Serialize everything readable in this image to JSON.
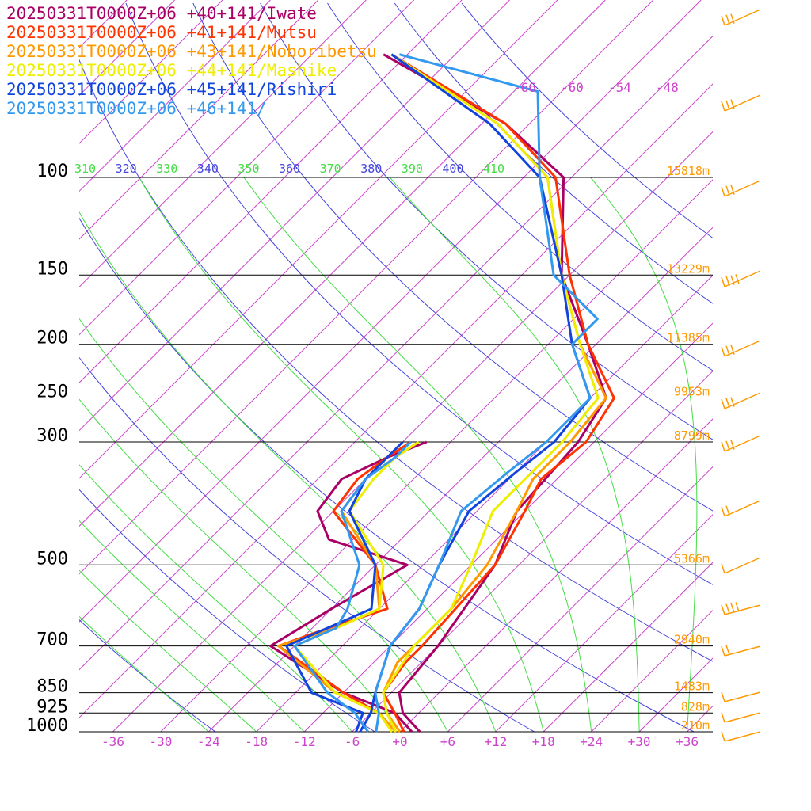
{
  "chart_data": {
    "type": "line",
    "pressure_levels": [
      100,
      150,
      200,
      250,
      300,
      500,
      700,
      850,
      925,
      1000
    ],
    "temperature_ticks": [
      "-36",
      "-30",
      "-24",
      "-18",
      "-12",
      "-6",
      "+0",
      "+6",
      "+12",
      "+18",
      "+24",
      "+30",
      "+36"
    ],
    "theta_labels": [
      "310",
      "320",
      "330",
      "340",
      "350",
      "360",
      "370",
      "380",
      "390",
      "400",
      "410"
    ],
    "upper_isotherm_labels": [
      "-66",
      "-60",
      "-54",
      "-48"
    ],
    "height_labels": [
      {
        "p": 100,
        "text": "15818m"
      },
      {
        "p": 150,
        "text": "13229m"
      },
      {
        "p": 200,
        "text": "11385m"
      },
      {
        "p": 250,
        "text": "9953m"
      },
      {
        "p": 300,
        "text": "8799m"
      },
      {
        "p": 500,
        "text": "5366m"
      },
      {
        "p": 700,
        "text": "2940m"
      },
      {
        "p": 850,
        "text": "1483m"
      },
      {
        "p": 925,
        "text": "828m"
      },
      {
        "p": 1000,
        "text": "210m"
      }
    ],
    "series": [
      {
        "name": "20250331T0000Z+06 +40+141/Iwate",
        "color": "#aa0066",
        "temperature": [
          [
            1000,
            2.5
          ],
          [
            925,
            -2
          ],
          [
            850,
            -5
          ],
          [
            700,
            -6
          ],
          [
            500,
            -9
          ],
          [
            400,
            -13
          ],
          [
            300,
            -14
          ],
          [
            250,
            -16
          ],
          [
            200,
            -25
          ],
          [
            150,
            -37
          ],
          [
            100,
            -49
          ],
          [
            80,
            -63
          ],
          [
            60,
            -87
          ]
        ],
        "dewpoint": [
          [
            1000,
            1.5
          ],
          [
            925,
            -3
          ],
          [
            850,
            -12
          ],
          [
            700,
            -27
          ],
          [
            600,
            -24
          ],
          [
            500,
            -20
          ],
          [
            450,
            -33
          ],
          [
            400,
            -38
          ],
          [
            350,
            -39
          ],
          [
            320,
            -36
          ],
          [
            300,
            -33
          ]
        ]
      },
      {
        "name": "20250331T0000Z+06 +41+141/Mutsu",
        "color": "#ff3300",
        "temperature": [
          [
            1000,
            0.5
          ],
          [
            925,
            -3
          ],
          [
            850,
            -7
          ],
          [
            750,
            -8
          ],
          [
            700,
            -8
          ],
          [
            500,
            -9
          ],
          [
            400,
            -12
          ],
          [
            350,
            -14
          ],
          [
            300,
            -13
          ],
          [
            250,
            -15
          ],
          [
            200,
            -25
          ],
          [
            150,
            -36
          ],
          [
            100,
            -50
          ],
          [
            80,
            -63
          ],
          [
            60,
            -86
          ]
        ],
        "dewpoint": [
          [
            1000,
            -0.5
          ],
          [
            925,
            -5
          ],
          [
            850,
            -12
          ],
          [
            700,
            -26
          ],
          [
            650,
            -22
          ],
          [
            600,
            -17
          ],
          [
            500,
            -24
          ],
          [
            400,
            -36
          ],
          [
            350,
            -37
          ],
          [
            320,
            -36
          ],
          [
            300,
            -35
          ]
        ]
      },
      {
        "name": "20250331T0000Z+06 +43+141/Noboribetsu",
        "color": "#ff9900",
        "temperature": [
          [
            1000,
            0
          ],
          [
            925,
            -4
          ],
          [
            850,
            -7
          ],
          [
            750,
            -9
          ],
          [
            700,
            -9
          ],
          [
            600,
            -9
          ],
          [
            500,
            -10
          ],
          [
            400,
            -13
          ],
          [
            350,
            -15
          ],
          [
            300,
            -15
          ],
          [
            250,
            -16
          ],
          [
            200,
            -26
          ],
          [
            150,
            -37
          ],
          [
            100,
            -51
          ],
          [
            80,
            -64
          ],
          [
            60,
            -86
          ]
        ],
        "dewpoint": [
          [
            1000,
            -0.5
          ],
          [
            925,
            -5
          ],
          [
            850,
            -13
          ],
          [
            700,
            -26
          ],
          [
            650,
            -21
          ],
          [
            600,
            -18
          ],
          [
            500,
            -24
          ],
          [
            400,
            -35
          ],
          [
            350,
            -36
          ],
          [
            320,
            -35
          ],
          [
            300,
            -34
          ]
        ]
      },
      {
        "name": "20250331T0000Z+06 +44+141/Mashike",
        "color": "#eeee00",
        "temperature": [
          [
            1000,
            -0.5
          ],
          [
            925,
            -4
          ],
          [
            850,
            -7
          ],
          [
            700,
            -9
          ],
          [
            600,
            -9
          ],
          [
            500,
            -12
          ],
          [
            400,
            -16
          ],
          [
            350,
            -16
          ],
          [
            300,
            -16
          ],
          [
            250,
            -17
          ],
          [
            200,
            -26
          ],
          [
            150,
            -37
          ],
          [
            100,
            -51
          ],
          [
            80,
            -64
          ],
          [
            60,
            -86
          ]
        ],
        "dewpoint": [
          [
            1000,
            -1
          ],
          [
            925,
            -5
          ],
          [
            850,
            -13
          ],
          [
            700,
            -24
          ],
          [
            650,
            -21
          ],
          [
            600,
            -18
          ],
          [
            500,
            -23
          ],
          [
            400,
            -34
          ],
          [
            350,
            -35
          ],
          [
            320,
            -35
          ],
          [
            300,
            -34
          ]
        ]
      },
      {
        "name": "20250331T0000Z+06 +45+141/Rishiri",
        "color": "#1144dd",
        "temperature": [
          [
            1000,
            -5
          ],
          [
            925,
            -6
          ],
          [
            850,
            -8
          ],
          [
            700,
            -12
          ],
          [
            600,
            -13
          ],
          [
            500,
            -16
          ],
          [
            400,
            -19
          ],
          [
            340,
            -18
          ],
          [
            300,
            -17
          ],
          [
            250,
            -18
          ],
          [
            200,
            -27
          ],
          [
            150,
            -37
          ],
          [
            100,
            -52
          ],
          [
            80,
            -65
          ],
          [
            60,
            -86
          ]
        ],
        "dewpoint": [
          [
            1000,
            -5.5
          ],
          [
            925,
            -7
          ],
          [
            850,
            -16
          ],
          [
            700,
            -25
          ],
          [
            600,
            -19
          ],
          [
            500,
            -24
          ],
          [
            400,
            -34
          ],
          [
            350,
            -36
          ],
          [
            320,
            -36
          ],
          [
            300,
            -36
          ]
        ]
      },
      {
        "name": "20250331T0000Z+06 +46+141/",
        "color": "#3399ee",
        "temperature": [
          [
            1000,
            -3
          ],
          [
            925,
            -5
          ],
          [
            850,
            -8
          ],
          [
            700,
            -12
          ],
          [
            600,
            -13
          ],
          [
            500,
            -16
          ],
          [
            400,
            -20
          ],
          [
            340,
            -19
          ],
          [
            300,
            -18
          ],
          [
            250,
            -18
          ],
          [
            200,
            -27
          ],
          [
            180,
            -27
          ],
          [
            150,
            -38
          ],
          [
            100,
            -52
          ],
          [
            70,
            -63
          ],
          [
            60,
            -85
          ]
        ],
        "dewpoint": [
          [
            1000,
            -4
          ],
          [
            925,
            -8
          ],
          [
            850,
            -14
          ],
          [
            700,
            -24
          ],
          [
            650,
            -21
          ],
          [
            600,
            -22
          ],
          [
            500,
            -26
          ],
          [
            400,
            -35
          ],
          [
            350,
            -36
          ],
          [
            320,
            -35
          ],
          [
            300,
            -35
          ]
        ]
      }
    ],
    "xlim": [
      -40,
      40
    ],
    "ylim": [
      1000,
      100
    ],
    "grid": true,
    "legend_position": "top-left"
  },
  "colors": {
    "isotherm": "#cc44cc",
    "dry_adiabat": "#4444dd",
    "moist_adiabat": "#44dd44",
    "isobar": "#000000",
    "wind_barb": "#ff9900"
  }
}
